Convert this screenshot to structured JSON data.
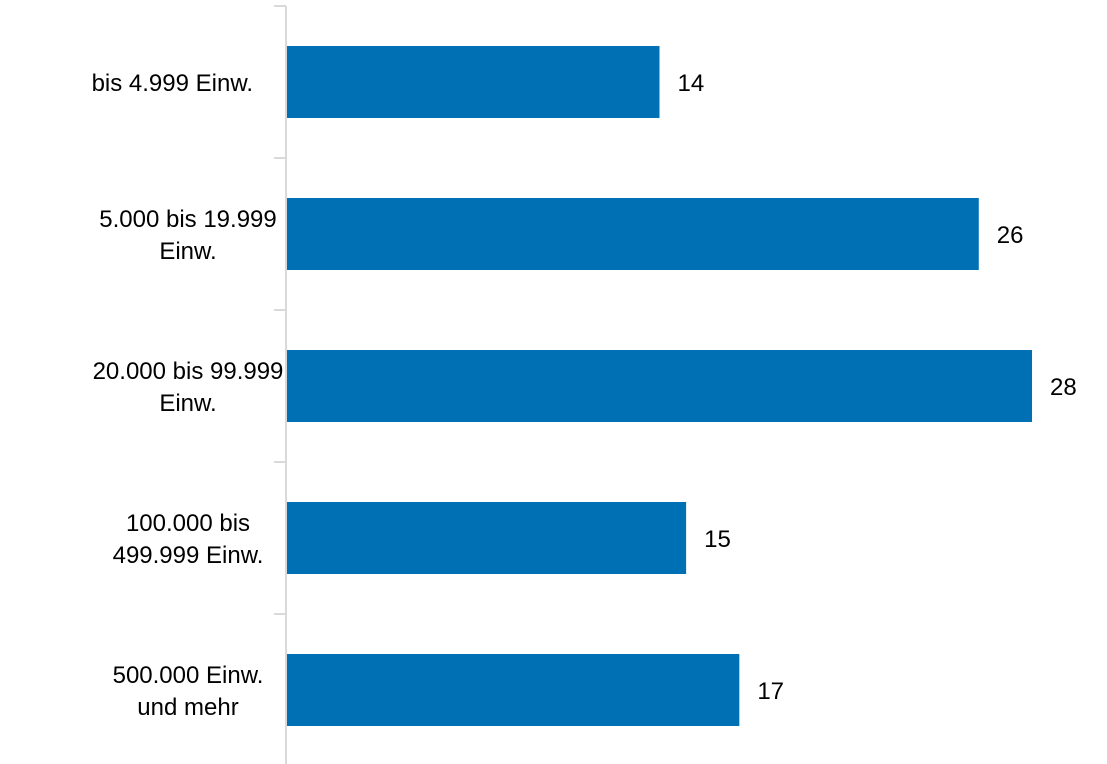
{
  "chart_data": {
    "type": "bar",
    "orientation": "horizontal",
    "categories": [
      [
        "bis 4.999 Einw."
      ],
      [
        "5.000 bis 19.999",
        "Einw."
      ],
      [
        "20.000 bis 99.999",
        "Einw."
      ],
      [
        "100.000 bis",
        "499.999 Einw."
      ],
      [
        "500.000 Einw.",
        "und mehr"
      ]
    ],
    "values": [
      14,
      26,
      28,
      15,
      17
    ],
    "data_labels": [
      "14",
      "26",
      "28",
      "15",
      "17"
    ],
    "title": "",
    "xlabel": "",
    "ylabel": "",
    "xlim": [
      0,
      28
    ],
    "grid": false,
    "legend": "none",
    "bar_color": "#0070B5",
    "axis_color": "#D9D9D9"
  }
}
